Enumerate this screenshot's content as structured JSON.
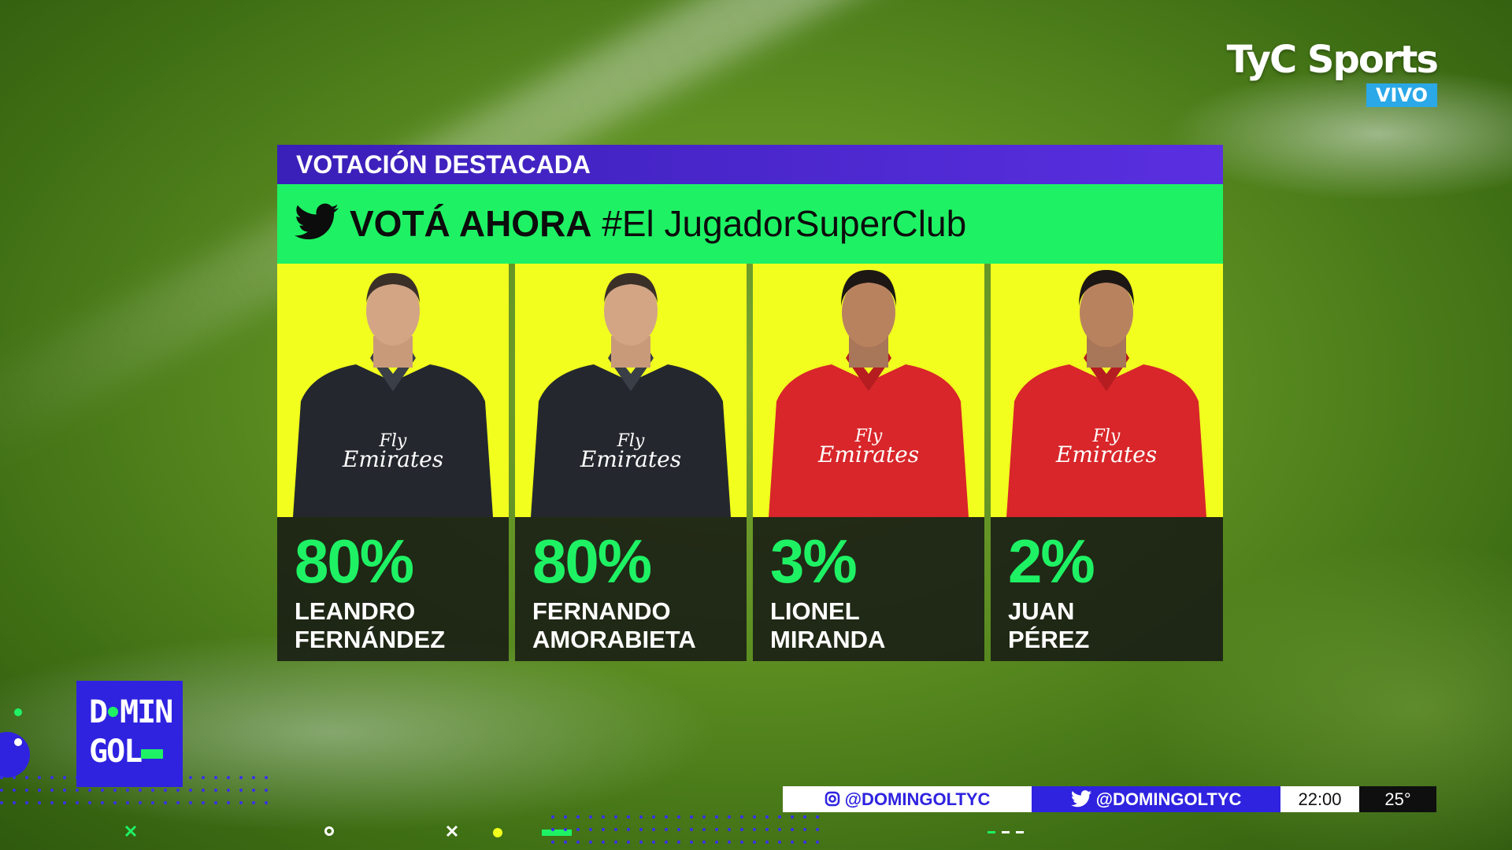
{
  "broadcaster": {
    "logo_text": "TyC Sports",
    "live_badge": "VIVO"
  },
  "panel": {
    "header": "VOTACIÓN DESTACADA",
    "banner_prefix": "VOTÁ AHORA",
    "banner_hashtag": "#El JugadorSuperClub",
    "banner_icon": "twitter-bird-icon"
  },
  "candidates": [
    {
      "percent": "80%",
      "first": "LEANDRO",
      "last": "FERNÁNDEZ",
      "kit": "black"
    },
    {
      "percent": "80%",
      "first": "FERNANDO",
      "last": "AMORABIETA",
      "kit": "black"
    },
    {
      "percent": "3%",
      "first": "LIONEL",
      "last": "MIRANDA",
      "kit": "red"
    },
    {
      "percent": "2%",
      "first": "JUAN",
      "last": "PÉREZ",
      "kit": "red"
    }
  ],
  "kit_sponsor_line1": "Fly",
  "kit_sponsor_line2": "Emirates",
  "show_logo": {
    "line1a": "D",
    "line1b": "MIN",
    "line2": "GOL"
  },
  "ticker": {
    "instagram": "@DOMINGOLTYC",
    "twitter": "@DOMINGOLTYC",
    "time": "22:00",
    "temperature": "25°"
  },
  "colors": {
    "accent_green": "#1ef264",
    "accent_blue": "#2f23e0",
    "card_yellow": "#f2ff1e"
  }
}
